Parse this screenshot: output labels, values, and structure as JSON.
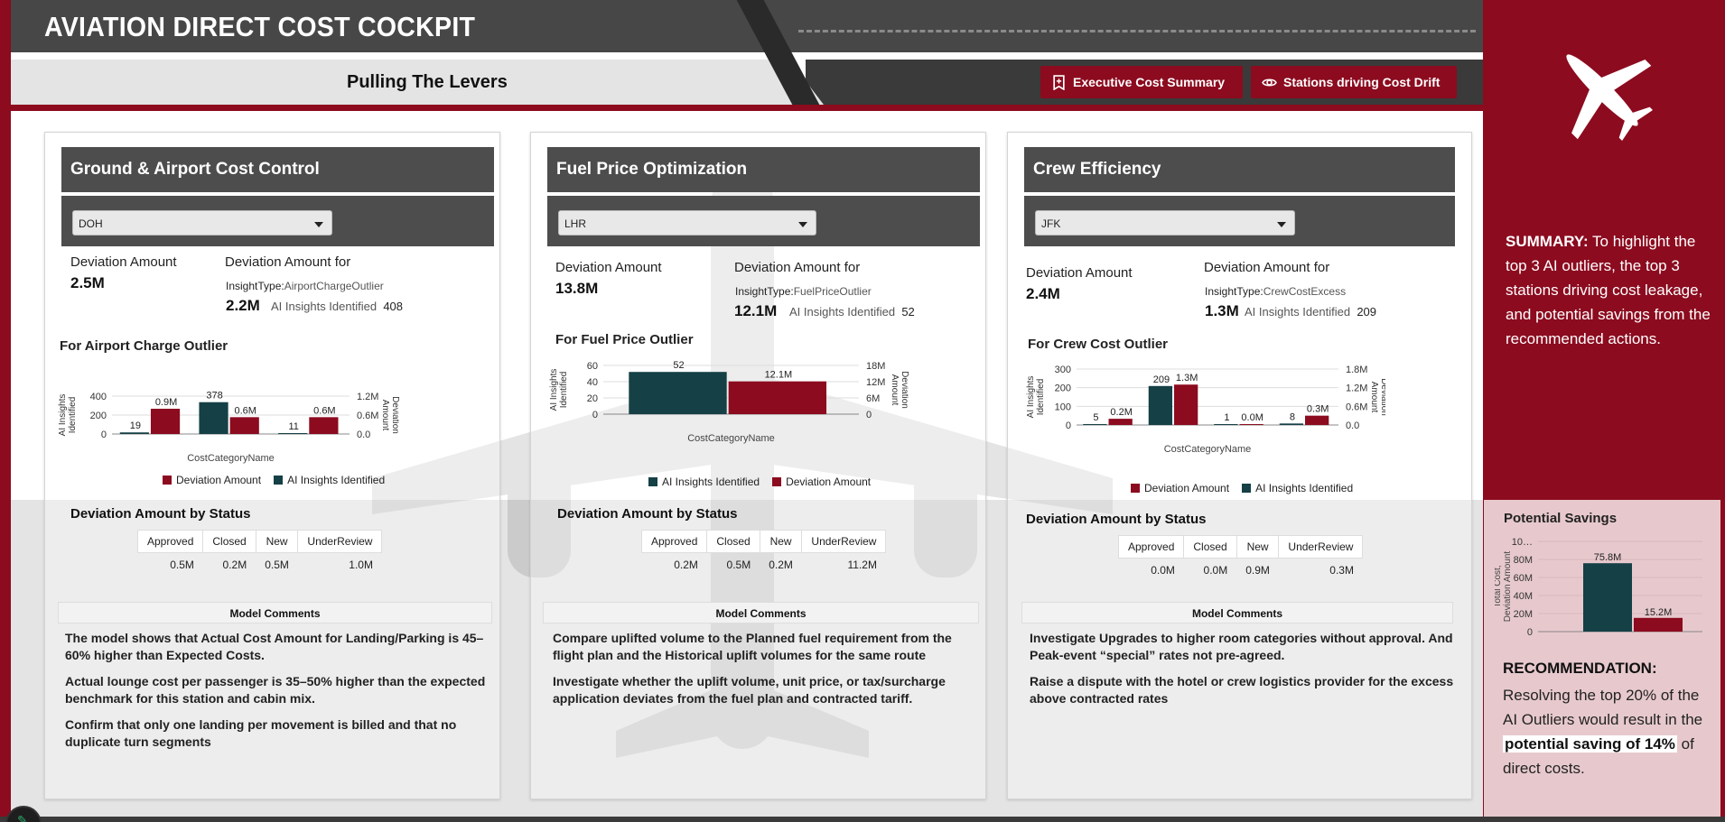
{
  "header": {
    "title": "AVIATION DIRECT COST COCKPIT",
    "subtitle": "Pulling The Levers",
    "buttons": [
      {
        "label": "Executive Cost Summary",
        "icon": "bookmark-icon"
      },
      {
        "label": "Stations driving Cost Drift",
        "icon": "eye-icon"
      }
    ]
  },
  "colors": {
    "brand_red": "#8c0b1f",
    "dark_teal": "#154046",
    "header_gray": "#4d4d4d"
  },
  "cards": [
    {
      "title": "Ground & Airport Cost Control",
      "station": "DOH",
      "deviation_label": "Deviation Amount",
      "deviation_value": "2.5M",
      "dev_for_label": "Deviation Amount for",
      "insight_type_label": "InsightType:",
      "insight_type": "AirportChargeOutlier",
      "dev_for_value": "2.2M",
      "ai_label": "AI Insights Identified",
      "ai_value": "408",
      "chart_title": "For Airport Charge Outlier",
      "legend": [
        "Deviation Amount",
        "AI Insights Identified"
      ],
      "status_title": "Deviation Amount by Status",
      "status_headers": [
        "Approved",
        "Closed",
        "New",
        "UnderReview"
      ],
      "status_values": [
        "0.5M",
        "0.2M",
        "0.5M",
        "1.0M"
      ],
      "comments_title": "Model Comments",
      "comments": [
        "The model shows that Actual Cost Amount for Landing/Parking is 45–60% higher than Expected Costs.",
        "Actual lounge cost per passenger is 35–50% higher than the expected benchmark for this station and cabin mix.",
        "Confirm that only one landing per movement is billed and that no duplicate turn segments"
      ]
    },
    {
      "title": "Fuel Price Optimization",
      "station": "LHR",
      "deviation_label": "Deviation Amount",
      "deviation_value": "13.8M",
      "dev_for_label": "Deviation Amount for",
      "insight_type_label": "InsightType:",
      "insight_type": "FuelPriceOutlier",
      "dev_for_value": "12.1M",
      "ai_label": "AI Insights Identified",
      "ai_value": "52",
      "chart_title": "For Fuel Price Outlier",
      "legend": [
        "AI Insights Identified",
        "Deviation Amount"
      ],
      "status_title": "Deviation Amount by Status",
      "status_headers": [
        "Approved",
        "Closed",
        "New",
        "UnderReview"
      ],
      "status_values": [
        "0.2M",
        "0.5M",
        "0.2M",
        "11.2M"
      ],
      "comments_title": "Model Comments",
      "comments": [
        "Compare uplifted volume to the Planned fuel requirement from the flight plan and the Historical uplift volumes for the same route",
        "Investigate whether the uplift volume, unit price, or tax/surcharge application deviates from the fuel plan and contracted tariff."
      ]
    },
    {
      "title": "Crew Efficiency",
      "station": "JFK",
      "deviation_label": "Deviation Amount",
      "deviation_value": "2.4M",
      "dev_for_label": "Deviation Amount for",
      "insight_type_label": "InsightType:",
      "insight_type": "CrewCostExcess",
      "dev_for_value": "1.3M",
      "ai_label": "AI Insights Identified",
      "ai_value": "209",
      "chart_title": "For Crew Cost Outlier",
      "legend": [
        "Deviation Amount",
        "AI Insights Identified"
      ],
      "status_title": "Deviation Amount by Status",
      "status_headers": [
        "Approved",
        "Closed",
        "New",
        "UnderReview"
      ],
      "status_values": [
        "0.0M",
        "0.0M",
        "0.9M",
        "0.3M"
      ],
      "comments_title": "Model Comments",
      "comments": [
        "Investigate Upgrades to higher room categories without approval. And Peak-event “special” rates not pre-agreed.",
        "Raise a dispute with the hotel or crew logistics provider for the excess above contracted rates"
      ]
    }
  ],
  "chart_data": [
    {
      "type": "bar",
      "title": "For Airport Charge Outlier",
      "xlabel": "CostCategoryName",
      "ylabel": "AI Insights Identified",
      "y2label": "Deviation Amount",
      "categories": [
        "",
        "",
        ""
      ],
      "series": [
        {
          "name": "AI Insights Identified",
          "axis": "left",
          "values": [
            19,
            378,
            11
          ],
          "labels": [
            "19",
            "378",
            "11"
          ]
        },
        {
          "name": "Deviation Amount",
          "axis": "right",
          "values": [
            0.9,
            0.6,
            0.6
          ],
          "labels": [
            "0.9M",
            "0.6M",
            "0.6M"
          ]
        }
      ],
      "yticks": [
        "0",
        "200",
        "400"
      ],
      "y2ticks": [
        "0.0",
        "0.6M",
        "1.2M"
      ],
      "ylim": [
        0,
        450
      ],
      "y2lim": [
        0,
        1.35
      ]
    },
    {
      "type": "bar",
      "title": "For Fuel Price Outlier",
      "xlabel": "CostCategoryName",
      "ylabel": "AI Insights Identified",
      "y2label": "Deviation Amount",
      "categories": [
        ""
      ],
      "series": [
        {
          "name": "AI Insights Identified",
          "axis": "left",
          "values": [
            52
          ],
          "labels": [
            "52"
          ]
        },
        {
          "name": "Deviation Amount",
          "axis": "right",
          "values": [
            12.1
          ],
          "labels": [
            "12.1M"
          ]
        }
      ],
      "yticks": [
        "0",
        "20",
        "40",
        "60"
      ],
      "y2ticks": [
        "0",
        "6M",
        "12M",
        "18M"
      ],
      "ylim": [
        0,
        60
      ],
      "y2lim": [
        0,
        18
      ]
    },
    {
      "type": "bar",
      "title": "For Crew Cost Outlier",
      "xlabel": "CostCategoryName",
      "ylabel": "AI Insights Identified",
      "y2label": "Deviation Amount",
      "categories": [
        "",
        "",
        "",
        ""
      ],
      "series": [
        {
          "name": "AI Insights Identified",
          "axis": "left",
          "values": [
            5,
            209,
            1,
            8
          ],
          "labels": [
            "5",
            "209",
            "1",
            "8"
          ]
        },
        {
          "name": "Deviation Amount",
          "axis": "right",
          "values": [
            0.2,
            1.3,
            0.0,
            0.3
          ],
          "labels": [
            "0.2M",
            "1.3M",
            "0.0M",
            "0.3M"
          ]
        }
      ],
      "yticks": [
        "0",
        "100",
        "200",
        "300"
      ],
      "y2ticks": [
        "0.0",
        "0.6M",
        "1.2M",
        "1.8M"
      ],
      "ylim": [
        0,
        300
      ],
      "y2lim": [
        0,
        1.8
      ]
    },
    {
      "type": "bar",
      "title": "Potential Savings",
      "ylabel": "Total Cost, Deviation Amount",
      "categories": [
        "",
        ""
      ],
      "series": [
        {
          "name": "",
          "values": [
            75.8,
            15.2
          ],
          "labels": [
            "75.8M",
            "15.2M"
          ]
        }
      ],
      "yticks": [
        "0",
        "20M",
        "40M",
        "60M",
        "80M",
        "10…"
      ],
      "ylim": [
        0,
        100
      ]
    }
  ],
  "summary": {
    "label": "SUMMARY:",
    "text": " To highlight the top 3 AI outliers, the top 3 stations driving cost leakage, and potential savings from the recommended actions."
  },
  "savings": {
    "title": "Potential Savings"
  },
  "recommendation": {
    "label": "RECOMMENDATION:",
    "text_before": "Resolving the top 20% of the AI Outliers would result in the ",
    "highlight": "potential saving of 14%",
    "text_after": " of direct costs."
  }
}
